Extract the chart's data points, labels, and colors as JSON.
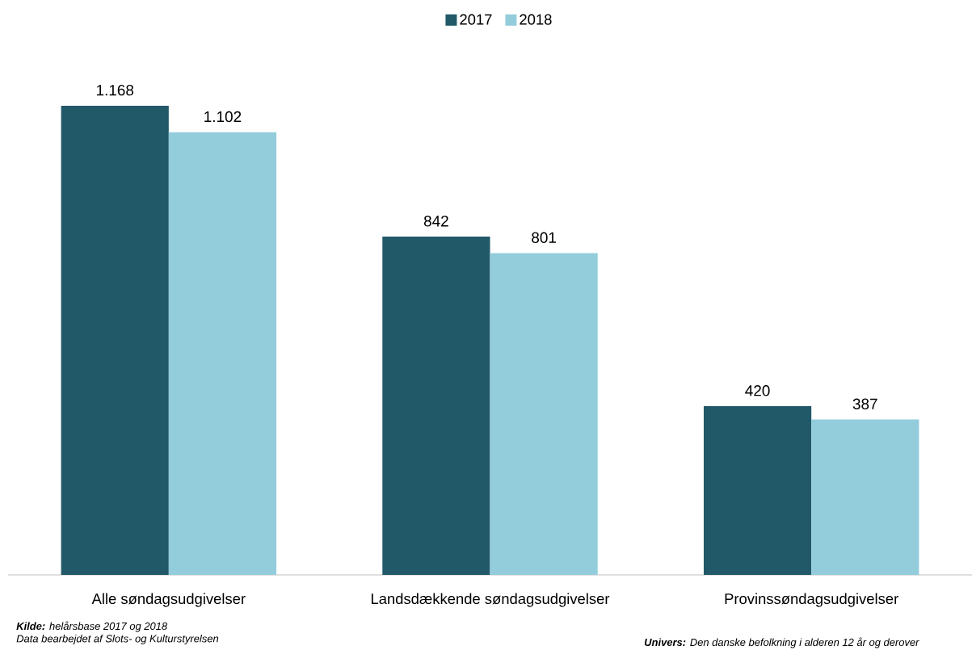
{
  "chart_data": {
    "type": "bar",
    "categories": [
      "Alle søndagsudgivelser",
      "Landsdækkende søndagsudgivelser",
      "Provinssøndagsudgivelser"
    ],
    "series": [
      {
        "name": "2017",
        "color": "#215968",
        "values": [
          1168,
          842,
          420
        ],
        "value_labels": [
          "1.168",
          "842",
          "420"
        ]
      },
      {
        "name": "2018",
        "color": "#93cddc",
        "values": [
          1102,
          801,
          387
        ],
        "value_labels": [
          "1.102",
          "801",
          "387"
        ]
      }
    ],
    "legend": "top",
    "annotations": [
      "**Kilde:** helårsbase 2017 og 2018",
      "Data bearbejdet af Slots- og Kulturstyrelsen",
      "**Univers:** Den danske befolkning i alderen 12 år og derover"
    ]
  }
}
